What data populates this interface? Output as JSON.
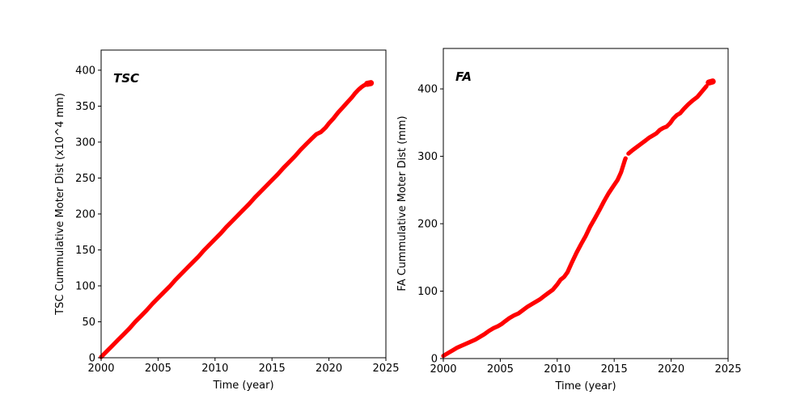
{
  "figure": {
    "background": "#ffffff",
    "axis_color": "#000000",
    "series_color": "#ff0000"
  },
  "chart_data": [
    {
      "type": "scatter",
      "panel": "left",
      "annotation": "TSC",
      "xlabel": "Time (year)",
      "ylabel": "TSC Cummulative Moter Dist (x10^4 mm)",
      "xlim": [
        2000,
        2025
      ],
      "ylim": [
        0,
        428
      ],
      "xticks": [
        2000,
        2005,
        2010,
        2015,
        2020,
        2025
      ],
      "yticks": [
        0,
        50,
        100,
        150,
        200,
        250,
        300,
        350,
        400
      ],
      "grid": false,
      "legend_position": "none",
      "series": [
        {
          "name": "TSC cumulative motor distance",
          "color": "#ff0000",
          "segments": [
            {
              "linewidth": 5.2,
              "points": [
                [
                  2000.0,
                  1
                ],
                [
                  2000.5,
                  9
                ],
                [
                  2001.0,
                  17
                ],
                [
                  2001.5,
                  25
                ],
                [
                  2002.0,
                  33
                ],
                [
                  2002.5,
                  41
                ],
                [
                  2003.0,
                  50
                ],
                [
                  2003.5,
                  58
                ],
                [
                  2004.0,
                  66
                ],
                [
                  2004.5,
                  75
                ],
                [
                  2005.0,
                  83
                ],
                [
                  2005.5,
                  91
                ],
                [
                  2006.0,
                  99
                ],
                [
                  2006.5,
                  108
                ],
                [
                  2007.0,
                  116
                ],
                [
                  2007.5,
                  124
                ],
                [
                  2008.0,
                  132
                ],
                [
                  2008.5,
                  140
                ],
                [
                  2009.0,
                  149
                ],
                [
                  2009.5,
                  157
                ],
                [
                  2010.0,
                  165
                ],
                [
                  2010.5,
                  173
                ],
                [
                  2011.0,
                  182
                ],
                [
                  2011.5,
                  190
                ],
                [
                  2012.0,
                  198
                ],
                [
                  2012.5,
                  206
                ],
                [
                  2013.0,
                  214
                ],
                [
                  2013.5,
                  223
                ],
                [
                  2014.0,
                  231
                ],
                [
                  2014.5,
                  239
                ],
                [
                  2015.0,
                  247
                ],
                [
                  2015.5,
                  255
                ],
                [
                  2016.0,
                  264
                ],
                [
                  2016.5,
                  272
                ],
                [
                  2017.0,
                  280
                ],
                [
                  2017.5,
                  289
                ],
                [
                  2018.0,
                  297
                ],
                [
                  2018.5,
                  305
                ],
                [
                  2018.9,
                  311
                ],
                [
                  2019.3,
                  314
                ],
                [
                  2019.7,
                  320
                ],
                [
                  2020.0,
                  326
                ],
                [
                  2020.4,
                  333
                ],
                [
                  2020.8,
                  341
                ],
                [
                  2021.2,
                  348
                ],
                [
                  2021.6,
                  355
                ],
                [
                  2022.0,
                  362
                ],
                [
                  2022.3,
                  368
                ],
                [
                  2022.6,
                  373
                ],
                [
                  2022.9,
                  377
                ],
                [
                  2023.1,
                  379
                ],
                [
                  2023.3,
                  380.5
                ]
              ]
            },
            {
              "linewidth": 7.5,
              "points": [
                [
                  2023.35,
                  381
                ],
                [
                  2023.68,
                  382
                ]
              ]
            }
          ]
        }
      ]
    },
    {
      "type": "scatter",
      "panel": "right",
      "annotation": "FA",
      "xlabel": "Time (year)",
      "ylabel": "FA Cummulative Moter Dist (mm)",
      "xlim": [
        2000,
        2025
      ],
      "ylim": [
        0,
        460
      ],
      "xticks": [
        2000,
        2005,
        2010,
        2015,
        2020,
        2025
      ],
      "yticks": [
        0,
        100,
        200,
        300,
        400
      ],
      "grid": false,
      "legend_position": "none",
      "series": [
        {
          "name": "FA cumulative motor distance",
          "color": "#ff0000",
          "segments": [
            {
              "linewidth": 5.2,
              "points": [
                [
                  2000.0,
                  4
                ],
                [
                  2000.4,
                  8
                ],
                [
                  2000.8,
                  12
                ],
                [
                  2001.2,
                  16
                ],
                [
                  2001.6,
                  19
                ],
                [
                  2002.0,
                  22
                ],
                [
                  2002.4,
                  25
                ],
                [
                  2002.8,
                  28
                ],
                [
                  2003.2,
                  32
                ],
                [
                  2003.6,
                  36
                ],
                [
                  2004.0,
                  41
                ],
                [
                  2004.4,
                  45
                ],
                [
                  2004.8,
                  48
                ],
                [
                  2005.1,
                  51
                ],
                [
                  2005.4,
                  55
                ],
                [
                  2005.8,
                  60
                ],
                [
                  2006.2,
                  64
                ],
                [
                  2006.6,
                  67
                ],
                [
                  2007.0,
                  72
                ],
                [
                  2007.4,
                  77
                ],
                [
                  2007.8,
                  81
                ],
                [
                  2008.2,
                  85
                ],
                [
                  2008.5,
                  88
                ],
                [
                  2008.8,
                  92
                ],
                [
                  2009.2,
                  97
                ],
                [
                  2009.6,
                  102
                ],
                [
                  2010.0,
                  110
                ],
                [
                  2010.3,
                  117
                ],
                [
                  2010.6,
                  121
                ],
                [
                  2010.9,
                  128
                ],
                [
                  2011.3,
                  143
                ],
                [
                  2011.7,
                  157
                ],
                [
                  2012.1,
                  170
                ],
                [
                  2012.5,
                  182
                ],
                [
                  2012.9,
                  196
                ],
                [
                  2013.3,
                  208
                ],
                [
                  2013.7,
                  220
                ],
                [
                  2014.1,
                  233
                ],
                [
                  2014.5,
                  245
                ],
                [
                  2014.9,
                  255
                ],
                [
                  2015.3,
                  265
                ],
                [
                  2015.6,
                  276
                ],
                [
                  2015.95,
                  295
                ],
                [
                  2016.0,
                  297
                ]
              ]
            },
            {
              "linewidth": 5.2,
              "points": [
                [
                  2016.25,
                  304
                ],
                [
                  2016.6,
                  309
                ],
                [
                  2017.0,
                  314
                ],
                [
                  2017.4,
                  319
                ],
                [
                  2017.8,
                  324
                ],
                [
                  2018.1,
                  328
                ],
                [
                  2018.4,
                  331
                ],
                [
                  2018.7,
                  334
                ],
                [
                  2019.0,
                  339
                ],
                [
                  2019.3,
                  342
                ],
                [
                  2019.6,
                  344
                ],
                [
                  2019.9,
                  349
                ],
                [
                  2020.2,
                  356
                ],
                [
                  2020.5,
                  361
                ],
                [
                  2020.8,
                  364
                ],
                [
                  2021.1,
                  370
                ],
                [
                  2021.5,
                  377
                ],
                [
                  2021.9,
                  383
                ],
                [
                  2022.3,
                  388
                ],
                [
                  2022.6,
                  394
                ],
                [
                  2022.9,
                  400
                ],
                [
                  2023.1,
                  404
                ]
              ]
            },
            {
              "linewidth": 7.5,
              "points": [
                [
                  2023.3,
                  409.5
                ],
                [
                  2023.65,
                  411
                ]
              ]
            }
          ]
        }
      ]
    }
  ]
}
